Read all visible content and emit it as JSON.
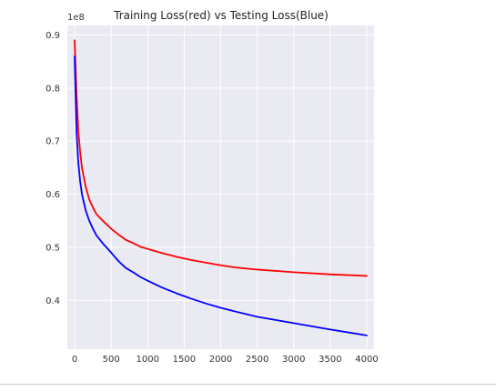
{
  "chart_data": {
    "type": "line",
    "title": "Training Loss(red) vs Testing Loss(Blue)",
    "xlabel": "",
    "ylabel": "",
    "y_offset_text": "1e8",
    "xlim": [
      -100,
      4100
    ],
    "ylim": [
      0.308,
      0.918
    ],
    "x_ticks": [
      0,
      500,
      1000,
      1500,
      2000,
      2500,
      3000,
      3500,
      4000
    ],
    "y_ticks": [
      0.4,
      0.5,
      0.6,
      0.7,
      0.8,
      0.9
    ],
    "y_tick_labels": [
      "0.4",
      "0.5",
      "0.6",
      "0.7",
      "0.8",
      "0.9"
    ],
    "grid": true,
    "background_color": "#EAEAF2",
    "series": [
      {
        "color": "#FF0000",
        "x": [
          0,
          25,
          50,
          75,
          100,
          150,
          200,
          250,
          300,
          400,
          500,
          600,
          700,
          800,
          900,
          1000,
          1200,
          1400,
          1600,
          1800,
          2000,
          2200,
          2500,
          3000,
          3500,
          4000
        ],
        "y": [
          0.89,
          0.79,
          0.72,
          0.68,
          0.65,
          0.615,
          0.59,
          0.575,
          0.562,
          0.548,
          0.535,
          0.524,
          0.514,
          0.508,
          0.501,
          0.497,
          0.489,
          0.482,
          0.476,
          0.471,
          0.466,
          0.462,
          0.458,
          0.453,
          0.449,
          0.446
        ]
      },
      {
        "color": "#0000FF",
        "x": [
          0,
          25,
          50,
          75,
          100,
          150,
          200,
          250,
          300,
          400,
          500,
          600,
          700,
          800,
          900,
          1000,
          1200,
          1400,
          1600,
          1800,
          2000,
          2200,
          2500,
          3000,
          3500,
          4000
        ],
        "y": [
          0.86,
          0.72,
          0.66,
          0.625,
          0.6,
          0.57,
          0.55,
          0.535,
          0.522,
          0.505,
          0.49,
          0.474,
          0.461,
          0.453,
          0.444,
          0.437,
          0.424,
          0.413,
          0.403,
          0.394,
          0.386,
          0.379,
          0.369,
          0.357,
          0.345,
          0.334
        ]
      }
    ]
  }
}
